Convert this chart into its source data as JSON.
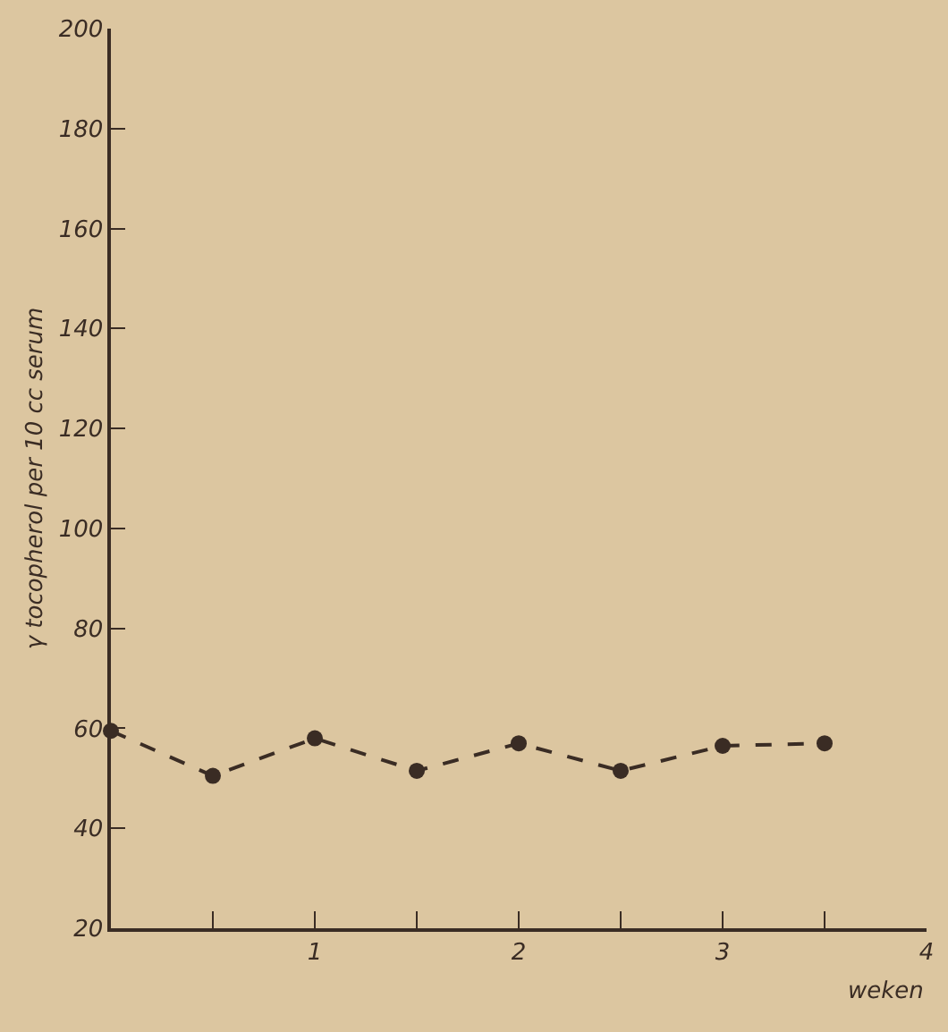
{
  "chart_data": {
    "type": "line",
    "ylabel": "γ tocopherol per 10 cc serum",
    "xlabel": "weken",
    "x": [
      0,
      0.5,
      1,
      1.5,
      2,
      2.5,
      3,
      3.5
    ],
    "series": [
      {
        "color": "#3a2c24",
        "values": [
          59.5,
          50.5,
          58,
          51.5,
          57,
          51.5,
          56.5,
          57
        ]
      }
    ],
    "xlim": [
      0,
      4
    ],
    "xticks": [
      {
        "value": 0.5,
        "label": null
      },
      1,
      {
        "value": 1.5,
        "label": null
      },
      2,
      {
        "value": 2.5,
        "label": null
      },
      3,
      {
        "value": 3.5,
        "label": null
      },
      4
    ],
    "ylim": [
      20,
      200
    ],
    "yticks": [
      20,
      40,
      60,
      80,
      100,
      120,
      140,
      160,
      180,
      200
    ],
    "marker": "circle",
    "line_style": "dashed"
  }
}
